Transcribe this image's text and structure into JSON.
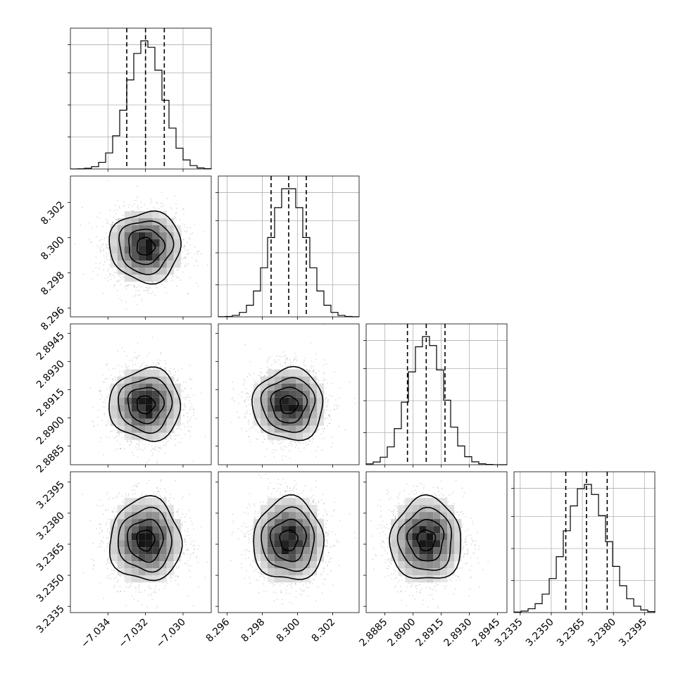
{
  "chart_data": {
    "type": "corner",
    "parameters": [
      {
        "range": [
          -7.036,
          -7.0285
        ],
        "mean": -7.032,
        "sigma": 0.00095,
        "ticks": [
          -7.034,
          -7.032,
          -7.03
        ],
        "tick_labels": [
          "−7.034",
          "−7.032",
          "−7.030"
        ],
        "quantiles": [
          -7.033,
          -7.032,
          -7.031
        ]
      },
      {
        "range": [
          8.2955,
          8.3035
        ],
        "mean": 8.2995,
        "sigma": 0.001,
        "ticks": [
          8.296,
          8.298,
          8.3,
          8.302
        ],
        "tick_labels": [
          "8.296",
          "8.298",
          "8.300",
          "8.302"
        ],
        "quantiles": [
          8.2985,
          8.2995,
          8.3005
        ]
      },
      {
        "range": [
          2.8875,
          2.895
        ],
        "mean": 2.8907,
        "sigma": 0.00095,
        "ticks": [
          2.8885,
          2.89,
          2.8915,
          2.893,
          2.8945
        ],
        "tick_labels": [
          "2.8885",
          "2.8900",
          "2.8915",
          "2.8930",
          "2.8945"
        ],
        "quantiles": [
          2.8897,
          2.8907,
          2.8917
        ]
      },
      {
        "range": [
          3.2332,
          3.24
        ],
        "mean": 3.2367,
        "sigma": 0.001,
        "ticks": [
          3.2335,
          3.235,
          3.2365,
          3.238,
          3.2395
        ],
        "tick_labels": [
          "3.2335",
          "3.2350",
          "3.2365",
          "3.2380",
          "3.2395"
        ],
        "quantiles": [
          3.2357,
          3.2367,
          3.2377
        ]
      }
    ],
    "contour_levels_sigma": [
      0.5,
      1.0,
      1.5,
      2.0
    ],
    "grid": true,
    "histogram_bins": 20
  }
}
